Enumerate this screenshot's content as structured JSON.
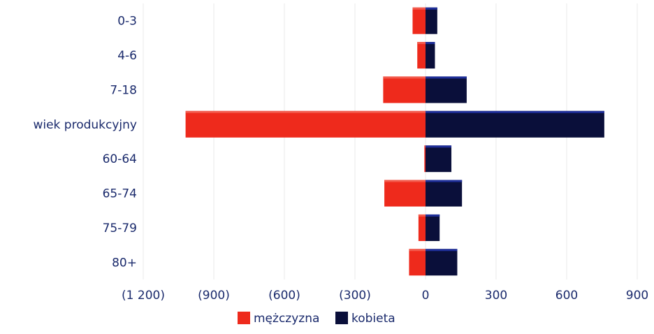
{
  "chart_data": {
    "type": "bar",
    "orientation": "horizontal",
    "stacking": "diverging",
    "categories": [
      "0-3",
      "4-6",
      "7-18",
      "wiek produkcyjny",
      "60-64",
      "65-74",
      "75-79",
      "80+"
    ],
    "series": [
      {
        "name": "mężczyzna",
        "color": "#ee2a1c",
        "values": [
          -55,
          -35,
          -180,
          -1020,
          -5,
          -175,
          -30,
          -70
        ]
      },
      {
        "name": "kobieta",
        "color": "#0a0f3a",
        "values": [
          50,
          40,
          175,
          760,
          110,
          155,
          60,
          135
        ]
      }
    ],
    "xlim": [
      -1200,
      900
    ],
    "xticks": [
      -1200,
      -900,
      -600,
      -300,
      0,
      300,
      600,
      900
    ],
    "xtick_labels": [
      "(1 200)",
      "(900)",
      "(600)",
      "(300)",
      "0",
      "300",
      "600",
      "900"
    ],
    "grid": "vertical",
    "legend": "bottom"
  }
}
